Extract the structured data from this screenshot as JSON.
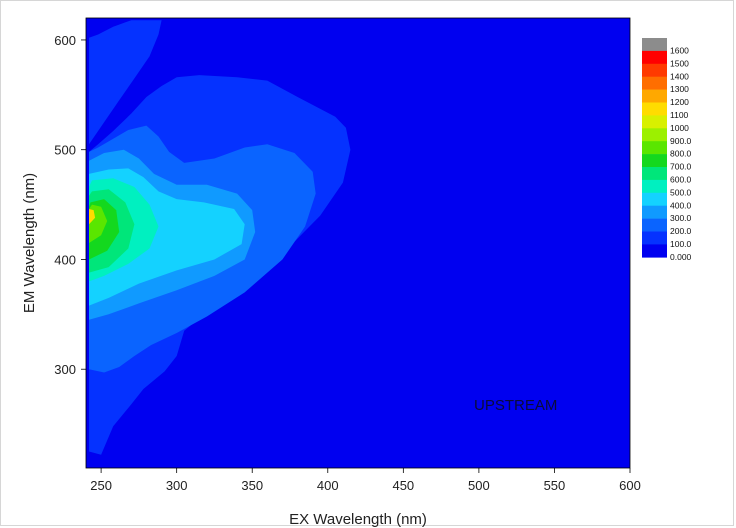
{
  "chart_data": {
    "type": "heatmap",
    "title": "",
    "xlabel": "EX Wavelength (nm)",
    "ylabel": "EM Wavelength (nm)",
    "xlim": [
      240,
      600
    ],
    "ylim": [
      210,
      620
    ],
    "x_ticks": [
      250,
      300,
      350,
      400,
      450,
      500,
      550,
      600
    ],
    "y_ticks": [
      300,
      400,
      500,
      600
    ],
    "annotation": "UPSTREAM",
    "colorbar": {
      "levels": [
        "1600",
        "1500",
        "1400",
        "1300",
        "1200",
        "1100",
        "1000",
        "900.0",
        "800.0",
        "700.0",
        "600.0",
        "500.0",
        "400.0",
        "300.0",
        "200.0",
        "100.0",
        "0.000"
      ],
      "colors": [
        "#8c8c8c",
        "#ff0000",
        "#ff3a00",
        "#ff6e00",
        "#ffa800",
        "#ffdc00",
        "#d8f000",
        "#9cf000",
        "#5ae600",
        "#14d81e",
        "#00e67a",
        "#00f0c0",
        "#14d2ff",
        "#109aff",
        "#0a64ff",
        "#0532ff",
        "#0000f0"
      ]
    },
    "contour_regions": [
      {
        "level": "100.0",
        "ex_em_points": [
          [
            242,
            225
          ],
          [
            250,
            222
          ],
          [
            258,
            248
          ],
          [
            270,
            268
          ],
          [
            278,
            282
          ],
          [
            292,
            298
          ],
          [
            300,
            312
          ],
          [
            305,
            335
          ],
          [
            320,
            352
          ],
          [
            350,
            385
          ],
          [
            375,
            412
          ],
          [
            395,
            440
          ],
          [
            410,
            470
          ],
          [
            415,
            500
          ],
          [
            412,
            520
          ],
          [
            405,
            530
          ],
          [
            380,
            548
          ],
          [
            360,
            563
          ],
          [
            340,
            566
          ],
          [
            315,
            568
          ],
          [
            300,
            566
          ],
          [
            290,
            558
          ],
          [
            280,
            548
          ],
          [
            270,
            533
          ],
          [
            258,
            517
          ],
          [
            248,
            505
          ],
          [
            242,
            498
          ]
        ]
      },
      {
        "level": "100.0",
        "ex_em_points": [
          [
            242,
            505
          ],
          [
            252,
            525
          ],
          [
            262,
            545
          ],
          [
            272,
            565
          ],
          [
            282,
            585
          ],
          [
            288,
            605
          ],
          [
            290,
            618
          ],
          [
            270,
            618
          ],
          [
            258,
            612
          ],
          [
            248,
            605
          ],
          [
            242,
            602
          ]
        ]
      },
      {
        "level": "200.0",
        "ex_em_points": [
          [
            242,
            300
          ],
          [
            252,
            297
          ],
          [
            262,
            302
          ],
          [
            272,
            312
          ],
          [
            283,
            322
          ],
          [
            300,
            333
          ],
          [
            320,
            348
          ],
          [
            345,
            370
          ],
          [
            370,
            400
          ],
          [
            385,
            430
          ],
          [
            392,
            460
          ],
          [
            390,
            480
          ],
          [
            378,
            497
          ],
          [
            360,
            505
          ],
          [
            345,
            502
          ],
          [
            325,
            492
          ],
          [
            305,
            488
          ],
          [
            295,
            498
          ],
          [
            288,
            512
          ],
          [
            280,
            522
          ],
          [
            268,
            518
          ],
          [
            258,
            510
          ],
          [
            248,
            502
          ],
          [
            242,
            498
          ]
        ]
      },
      {
        "level": "300.0",
        "ex_em_points": [
          [
            242,
            345
          ],
          [
            255,
            350
          ],
          [
            275,
            360
          ],
          [
            300,
            372
          ],
          [
            325,
            385
          ],
          [
            345,
            400
          ],
          [
            352,
            425
          ],
          [
            350,
            445
          ],
          [
            340,
            460
          ],
          [
            320,
            468
          ],
          [
            300,
            468
          ],
          [
            285,
            478
          ],
          [
            275,
            492
          ],
          [
            265,
            500
          ],
          [
            252,
            497
          ],
          [
            242,
            490
          ]
        ]
      },
      {
        "level": "400.0",
        "ex_em_points": [
          [
            242,
            358
          ],
          [
            255,
            365
          ],
          [
            275,
            378
          ],
          [
            300,
            390
          ],
          [
            325,
            400
          ],
          [
            343,
            414
          ],
          [
            345,
            432
          ],
          [
            338,
            446
          ],
          [
            318,
            452
          ],
          [
            300,
            455
          ],
          [
            288,
            462
          ],
          [
            278,
            475
          ],
          [
            268,
            483
          ],
          [
            255,
            482
          ],
          [
            242,
            478
          ]
        ]
      },
      {
        "level": "500.0",
        "ex_em_points": [
          [
            242,
            380
          ],
          [
            252,
            385
          ],
          [
            268,
            396
          ],
          [
            282,
            410
          ],
          [
            288,
            430
          ],
          [
            282,
            450
          ],
          [
            272,
            466
          ],
          [
            258,
            474
          ],
          [
            244,
            472
          ],
          [
            242,
            466
          ]
        ]
      },
      {
        "level": "600.0",
        "ex_em_points": [
          [
            242,
            388
          ],
          [
            255,
            393
          ],
          [
            268,
            410
          ],
          [
            272,
            432
          ],
          [
            266,
            452
          ],
          [
            255,
            464
          ],
          [
            244,
            462
          ],
          [
            242,
            458
          ]
        ]
      },
      {
        "level": "700.0",
        "ex_em_points": [
          [
            242,
            400
          ],
          [
            254,
            408
          ],
          [
            262,
            425
          ],
          [
            260,
            445
          ],
          [
            252,
            455
          ],
          [
            243,
            452
          ],
          [
            242,
            448
          ]
        ]
      },
      {
        "level": "800.0",
        "ex_em_points": [
          [
            242,
            415
          ],
          [
            250,
            422
          ],
          [
            254,
            435
          ],
          [
            250,
            448
          ],
          [
            244,
            450
          ],
          [
            242,
            446
          ]
        ]
      },
      {
        "level": "1100",
        "ex_em_points": [
          [
            242,
            432
          ],
          [
            246,
            438
          ],
          [
            245,
            445
          ],
          [
            242,
            446
          ]
        ]
      }
    ]
  }
}
